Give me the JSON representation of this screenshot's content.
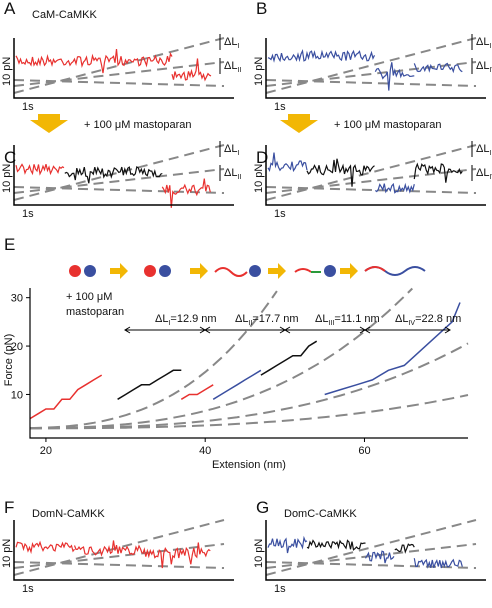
{
  "panels": [
    {
      "label": "A",
      "title": "CaM-CaMKK",
      "deltas": [
        {
          "main": "ΔL",
          "sub": "I"
        },
        {
          "main": "ΔL",
          "sub": "II"
        }
      ],
      "scale_y": "10 pN",
      "scale_x": "1s"
    },
    {
      "label": "B",
      "deltas": [
        {
          "main": "ΔL",
          "sub": "III"
        },
        {
          "main": "ΔL",
          "sub": "IV"
        }
      ],
      "scale_y": "10 pN",
      "scale_x": "1s"
    },
    {
      "label": "C",
      "deltas": [
        {
          "main": "ΔL",
          "sub": "I"
        },
        {
          "main": "ΔL",
          "sub": "II"
        }
      ],
      "scale_y": "10 pN",
      "scale_x": "1s"
    },
    {
      "label": "D",
      "deltas": [
        {
          "main": "ΔL",
          "sub": "III"
        },
        {
          "main": "ΔL",
          "sub": "IV"
        }
      ],
      "scale_y": "10 pN",
      "scale_x": "1s"
    },
    {
      "label": "F",
      "title": "DomN-CaMKK",
      "scale_y": "10 pN",
      "scale_x": "1s"
    },
    {
      "label": "G",
      "title": "DomC-CaMKK",
      "scale_y": "10 pN",
      "scale_x": "1s"
    }
  ],
  "notes": [
    "+ 100 μM mastoparan",
    "+ 100 μM mastoparan"
  ],
  "panel_e": {
    "label": "E",
    "note_lines": [
      "+ 100 μM",
      "mastoparan"
    ],
    "deltas": [
      {
        "main": "ΔL",
        "sub": "I",
        "rest": "=12.9 nm"
      },
      {
        "main": "ΔL",
        "sub": "II",
        "rest": "=17.7 nm"
      },
      {
        "main": "ΔL",
        "sub": "III",
        "rest": "=11.1 nm"
      },
      {
        "main": "ΔL",
        "sub": "IV",
        "rest": "=22.8 nm"
      }
    ]
  },
  "chart_data": {
    "type": "line",
    "x_label": "Extension (nm)",
    "y_label": "Force (pN)",
    "xlim": [
      18,
      73
    ],
    "ylim": [
      1,
      32
    ],
    "xticks": [
      20,
      40,
      60
    ],
    "yticks": [
      10,
      20,
      30
    ],
    "series": [
      {
        "color": "#e8312f",
        "x": [
          18,
          19,
          20,
          21,
          22,
          23,
          24,
          25,
          26,
          27
        ],
        "values": [
          5,
          6,
          7,
          7,
          9,
          9,
          11,
          12,
          13,
          14
        ]
      },
      {
        "color": "#111111",
        "x": [
          29,
          30,
          31,
          32,
          33,
          34,
          35,
          36,
          37
        ],
        "values": [
          9,
          10,
          11,
          12,
          12,
          13,
          14,
          15,
          15
        ]
      },
      {
        "color": "#e8312f",
        "x": [
          37,
          38,
          39,
          40,
          41
        ],
        "values": [
          9,
          10,
          10,
          11,
          12
        ]
      },
      {
        "color": "#3a4fa0",
        "x": [
          41,
          42,
          43,
          44,
          45,
          46,
          47
        ],
        "values": [
          9,
          10,
          11,
          12,
          13,
          14,
          15
        ]
      },
      {
        "color": "#111111",
        "x": [
          47,
          48,
          49,
          50,
          51,
          52,
          53,
          54
        ],
        "values": [
          14,
          15,
          16,
          17,
          18,
          18,
          20,
          21
        ]
      },
      {
        "color": "#3a4fa0",
        "x": [
          55,
          57,
          59,
          61,
          63,
          65,
          67,
          69,
          71,
          72
        ],
        "values": [
          10,
          11,
          12,
          13,
          15,
          16,
          19,
          22,
          25,
          29
        ]
      }
    ]
  }
}
